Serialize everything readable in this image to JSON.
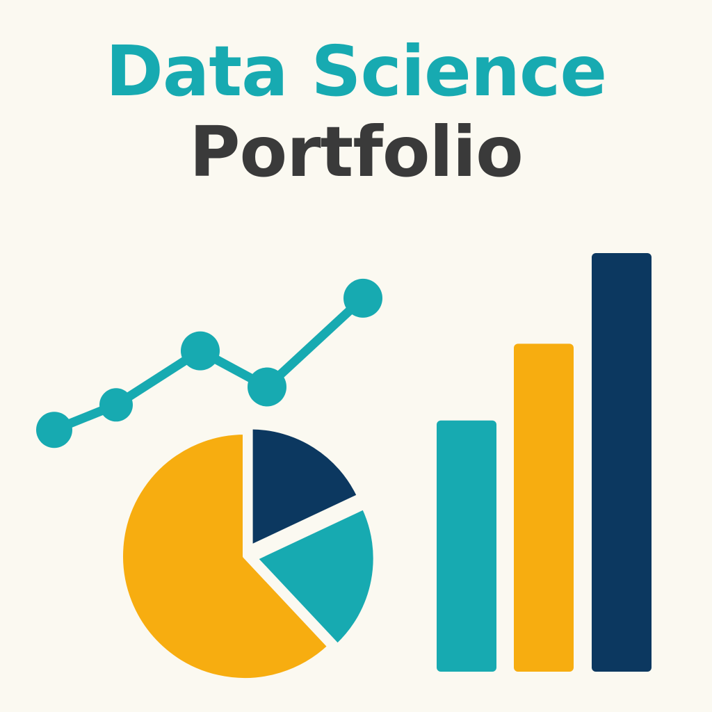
{
  "title": {
    "line1": "Data Science",
    "line2": "Portfolio"
  },
  "colors": {
    "background": "#fbf9f1",
    "teal": "#17aab1",
    "gold": "#f7ad10",
    "navy": "#0c3860",
    "dark_text": "#3a3a3a"
  },
  "chart_data": [
    {
      "type": "line",
      "x": [
        1,
        2,
        3,
        4,
        5
      ],
      "y": [
        1,
        2,
        4,
        3,
        6
      ],
      "color": "#17aab1",
      "ylim": [
        0,
        6.5
      ]
    },
    {
      "type": "pie",
      "values": [
        62,
        18,
        20
      ],
      "colors": [
        "#f7ad10",
        "#0c3860",
        "#17aab1"
      ],
      "exploded": [
        false,
        true,
        true
      ]
    },
    {
      "type": "bar",
      "categories": [
        "1",
        "2",
        "3"
      ],
      "values": [
        360,
        470,
        600
      ],
      "colors": [
        "#17aab1",
        "#f7ad10",
        "#0c3860"
      ],
      "ylim": [
        0,
        600
      ]
    }
  ]
}
